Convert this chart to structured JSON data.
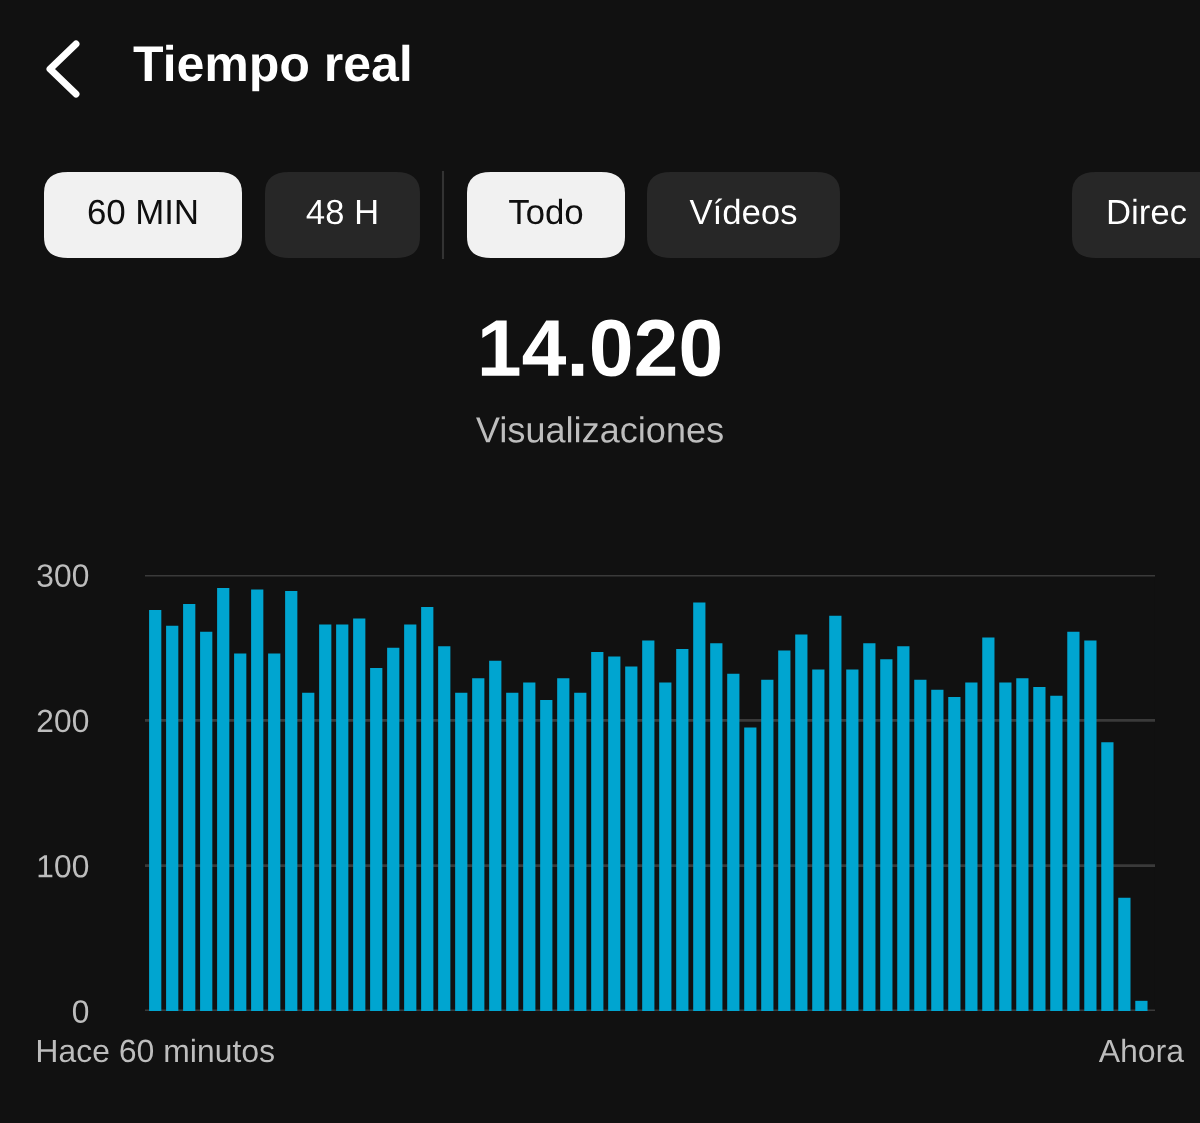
{
  "chart_data": {
    "type": "bar",
    "title": "Tiempo real",
    "annotations": [
      "60 MIN",
      "48 H",
      "Todo",
      "Vídeos",
      "Direc",
      "14.020",
      "Visualizaciones"
    ],
    "categories": [
      "Hace 60 minutos",
      null,
      null,
      null,
      null,
      null,
      null,
      null,
      null,
      null,
      null,
      null,
      null,
      null,
      null,
      null,
      null,
      null,
      null,
      null,
      null,
      null,
      null,
      null,
      null,
      null,
      null,
      null,
      null,
      null,
      null,
      null,
      null,
      null,
      null,
      null,
      null,
      null,
      null,
      null,
      null,
      null,
      null,
      null,
      null,
      null,
      null,
      null,
      null,
      null,
      null,
      null,
      null,
      null,
      null,
      null,
      null,
      null,
      "Ahora"
    ],
    "values": [
      276,
      265,
      280,
      261,
      291,
      246,
      290,
      246,
      289,
      219,
      266,
      266,
      270,
      236,
      250,
      266,
      278,
      251,
      219,
      229,
      241,
      219,
      226,
      214,
      229,
      219,
      247,
      244,
      237,
      255,
      226,
      249,
      281,
      253,
      232,
      195,
      228,
      248,
      259,
      235,
      272,
      235,
      253,
      242,
      251,
      228,
      221,
      216,
      226,
      257,
      226,
      229,
      223,
      217,
      261,
      255,
      185,
      78,
      7
    ],
    "color": "#00a5d0",
    "ylim": [
      0,
      300
    ],
    "yticks": [
      0,
      100,
      200,
      300
    ],
    "grid": "y"
  }
}
